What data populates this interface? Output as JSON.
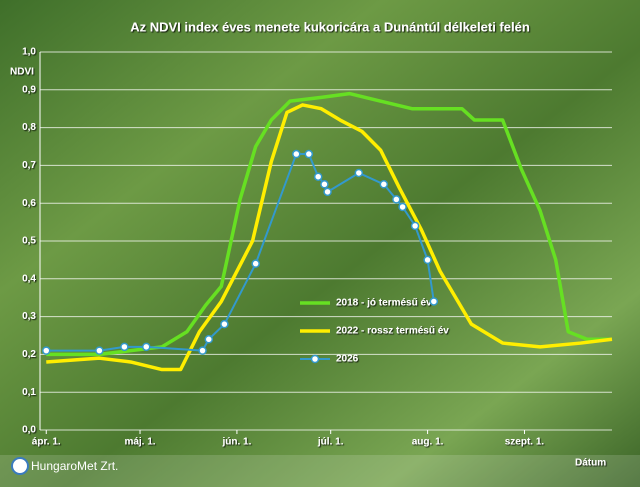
{
  "chart_data": {
    "type": "line",
    "title": "Az NDVI index éves menete kukoricára a Dunántúl délkeleti felén",
    "y_label": "NDVI",
    "x_label": "Dátum",
    "logo": "HungaroMet Zrt.",
    "xlim": [
      -2,
      181
    ],
    "xticks": [
      {
        "value": 0,
        "label": "ápr. 1."
      },
      {
        "value": 30,
        "label": "máj. 1."
      },
      {
        "value": 61,
        "label": "jún. 1."
      },
      {
        "value": 91,
        "label": "júl. 1."
      },
      {
        "value": 122,
        "label": "aug. 1."
      },
      {
        "value": 153,
        "label": "szept. 1."
      }
    ],
    "ylim": [
      0,
      1
    ],
    "yticks": [
      {
        "value": 0,
        "label": "0,0"
      },
      {
        "value": 0.1,
        "label": "0,1"
      },
      {
        "value": 0.2,
        "label": "0,2"
      },
      {
        "value": 0.3,
        "label": "0,3"
      },
      {
        "value": 0.4,
        "label": "0,4"
      },
      {
        "value": 0.5,
        "label": "0,5"
      },
      {
        "value": 0.6,
        "label": "0,6"
      },
      {
        "value": 0.7,
        "label": "0,7"
      },
      {
        "value": 0.8,
        "label": "0,8"
      },
      {
        "value": 0.9,
        "label": "0,9"
      },
      {
        "value": 1,
        "label": "1,0"
      }
    ],
    "grid": true,
    "series": [
      {
        "name": "2018 - jó termésű év",
        "color": "#66e022",
        "markers": false,
        "x": [
          0,
          17,
          27,
          37,
          45,
          51,
          56,
          62,
          67,
          72,
          78,
          88,
          97,
          107,
          117,
          133,
          137,
          146,
          152,
          158,
          163,
          167,
          173,
          181
        ],
        "values": [
          0.2,
          0.2,
          0.21,
          0.22,
          0.26,
          0.33,
          0.38,
          0.61,
          0.75,
          0.82,
          0.87,
          0.88,
          0.89,
          0.87,
          0.85,
          0.85,
          0.82,
          0.82,
          0.69,
          0.58,
          0.45,
          0.26,
          0.24,
          0.24
        ]
      },
      {
        "name": "2022 - rossz termésű év",
        "color": "#ffee00",
        "markers": false,
        "x": [
          0,
          17,
          27,
          37,
          43,
          49,
          56,
          66,
          72,
          77,
          82,
          88,
          94,
          101,
          107,
          113,
          120,
          126,
          136,
          146,
          158,
          171,
          181
        ],
        "values": [
          0.18,
          0.19,
          0.18,
          0.16,
          0.16,
          0.26,
          0.34,
          0.5,
          0.71,
          0.84,
          0.86,
          0.85,
          0.82,
          0.79,
          0.74,
          0.64,
          0.53,
          0.42,
          0.28,
          0.23,
          0.22,
          0.23,
          0.24
        ]
      },
      {
        "name": "2026",
        "color": "#3399cc",
        "markers": true,
        "x": [
          0,
          17,
          25,
          32,
          50,
          52,
          57,
          67,
          80,
          84,
          87,
          89,
          90,
          100,
          108,
          112,
          114,
          118,
          122,
          124
        ],
        "values": [
          0.21,
          0.21,
          0.22,
          0.22,
          0.21,
          0.24,
          0.28,
          0.44,
          0.73,
          0.73,
          0.67,
          0.65,
          0.63,
          0.68,
          0.65,
          0.61,
          0.59,
          0.54,
          0.45,
          0.34
        ]
      }
    ]
  }
}
